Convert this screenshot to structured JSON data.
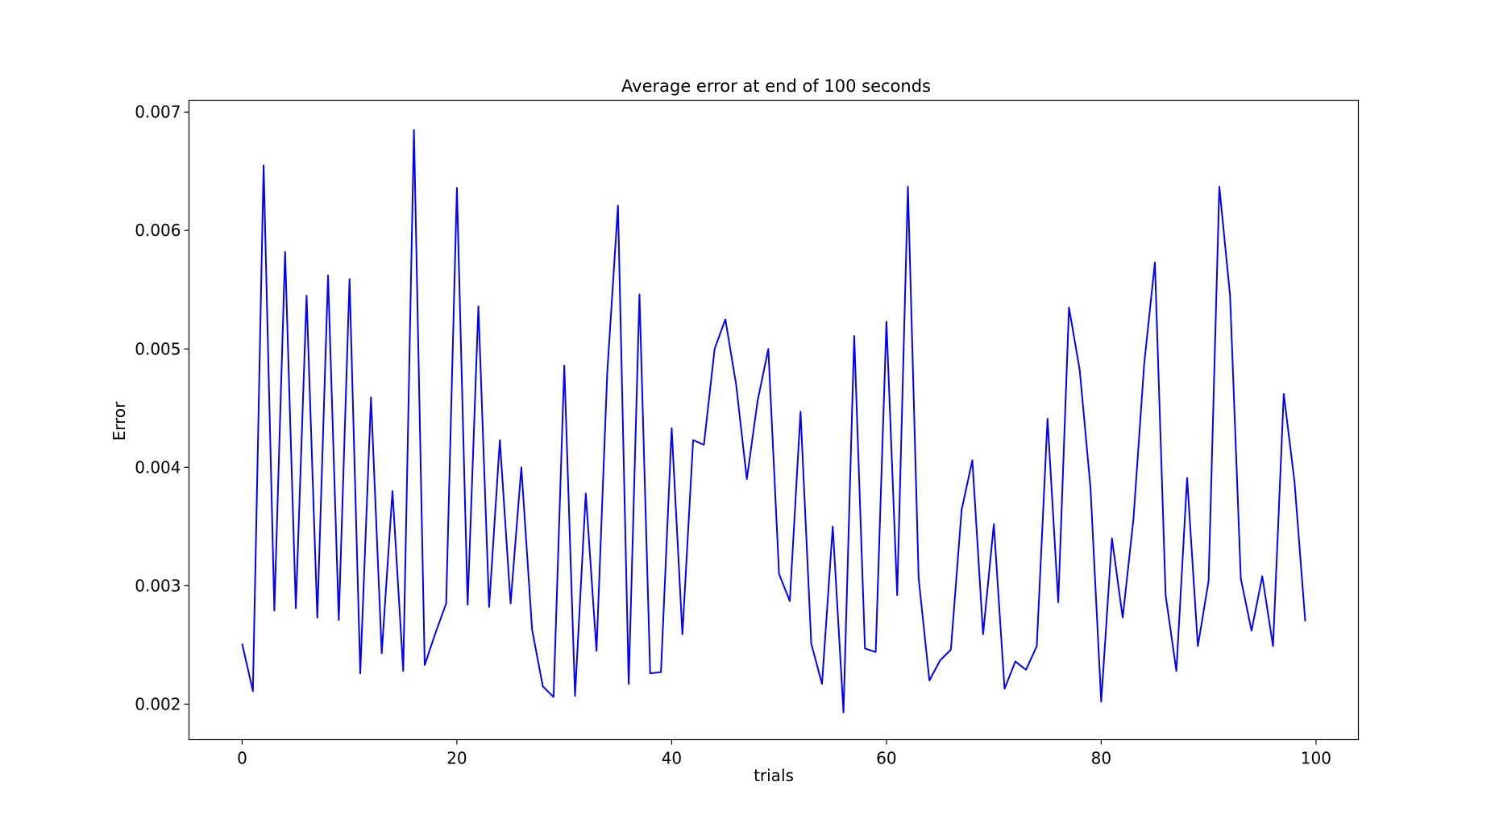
{
  "chart_data": {
    "type": "line",
    "title": "Average error at end of 100 seconds",
    "xlabel": "trials",
    "ylabel": "Error",
    "xlim": [
      -4.95,
      103.95
    ],
    "ylim": [
      0.0017,
      0.0071
    ],
    "x_ticks": [
      0,
      20,
      40,
      60,
      80,
      100
    ],
    "x_tick_labels": [
      "0",
      "20",
      "40",
      "60",
      "80",
      "100"
    ],
    "y_ticks": [
      0.002,
      0.003,
      0.004,
      0.005,
      0.006,
      0.007
    ],
    "y_tick_labels": [
      "0.002",
      "0.003",
      "0.004",
      "0.005",
      "0.006",
      "0.007"
    ],
    "grid": false,
    "legend": "none",
    "series_color": "#0000ff",
    "x": [
      0,
      1,
      2,
      3,
      4,
      5,
      6,
      7,
      8,
      9,
      10,
      11,
      12,
      13,
      14,
      15,
      16,
      17,
      18,
      19,
      20,
      21,
      22,
      23,
      24,
      25,
      26,
      27,
      28,
      29,
      30,
      31,
      32,
      33,
      34,
      35,
      36,
      37,
      38,
      39,
      40,
      41,
      42,
      43,
      44,
      45,
      46,
      47,
      48,
      49,
      50,
      51,
      52,
      53,
      54,
      55,
      56,
      57,
      58,
      59,
      60,
      61,
      62,
      63,
      64,
      65,
      66,
      67,
      68,
      69,
      70,
      71,
      72,
      73,
      74,
      75,
      76,
      77,
      78,
      79,
      80,
      81,
      82,
      83,
      84,
      85,
      86,
      87,
      88,
      89,
      90,
      91,
      92,
      93,
      94,
      95,
      96,
      97,
      98,
      99
    ],
    "values": [
      0.00251,
      0.00211,
      0.00655,
      0.00279,
      0.00582,
      0.00281,
      0.00545,
      0.00273,
      0.00562,
      0.00271,
      0.00559,
      0.00226,
      0.00459,
      0.00243,
      0.0038,
      0.00228,
      0.00685,
      0.00233,
      0.0026,
      0.00285,
      0.00636,
      0.00284,
      0.00536,
      0.00282,
      0.00423,
      0.00285,
      0.004,
      0.00263,
      0.00215,
      0.00206,
      0.00486,
      0.00207,
      0.00378,
      0.00245,
      0.0048,
      0.00621,
      0.00217,
      0.00546,
      0.00226,
      0.00227,
      0.00433,
      0.00259,
      0.00423,
      0.00419,
      0.005,
      0.00525,
      0.0047,
      0.0039,
      0.00456,
      0.005,
      0.0031,
      0.00287,
      0.00447,
      0.00251,
      0.00217,
      0.0035,
      0.00193,
      0.00511,
      0.00247,
      0.00244,
      0.00523,
      0.00292,
      0.00637,
      0.00306,
      0.0022,
      0.00237,
      0.00246,
      0.00364,
      0.00406,
      0.00259,
      0.00352,
      0.00213,
      0.00236,
      0.00229,
      0.00249,
      0.00441,
      0.00286,
      0.00535,
      0.00482,
      0.00383,
      0.00202,
      0.0034,
      0.00273,
      0.00356,
      0.00487,
      0.00573,
      0.00292,
      0.00228,
      0.00391,
      0.00249,
      0.00304,
      0.00637,
      0.00545,
      0.00306,
      0.00262,
      0.00308,
      0.00249,
      0.00462,
      0.00388,
      0.0027
    ]
  }
}
